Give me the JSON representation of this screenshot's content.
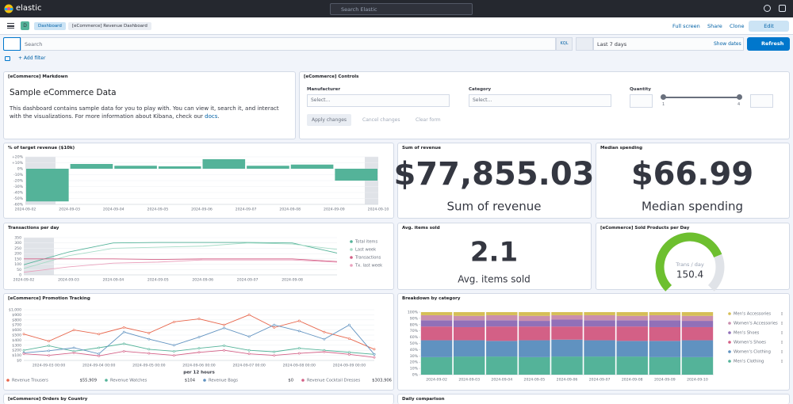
{
  "header": {
    "brand": "elastic",
    "search": "Search Elastic",
    "avatar": "D",
    "breadcrumbs": [
      "Dashboard",
      "[eCommerce] Revenue Dashboard"
    ],
    "actions": [
      "Full screen",
      "Share",
      "Clone",
      "Edit"
    ]
  },
  "query_bar": {
    "placeholder": "Search",
    "language": "KQL",
    "time": "Last 7 days",
    "show_dates": "Show dates",
    "refresh": "Refresh",
    "add_filter": "+ Add filter"
  },
  "markdown": {
    "panel_title": "[eCommerce] Markdown",
    "heading": "Sample eCommerce Data",
    "text": "This dashboard contains sample data for you to play with. You can view it, search it, and interact with the visualizations. For more information about Kibana, check our ",
    "link": "docs",
    "end": "."
  },
  "controls": {
    "panel_title": "[eCommerce] Controls",
    "fields": [
      {
        "label": "Manufacturer",
        "placeholder": "Select..."
      },
      {
        "label": "Category",
        "placeholder": "Select..."
      }
    ],
    "range": {
      "label": "Quantity",
      "min": 1,
      "max": 4
    },
    "buttons": [
      "Apply changes",
      "Cancel changes",
      "Clear form"
    ]
  },
  "more_panels": [
    "[eCommerce] Orders by Country",
    "Daily comparison"
  ],
  "chart_data": [
    {
      "type": "bar",
      "title": "% of target revenue ($10k)",
      "categories": [
        "2024-09-02",
        "2024-09-03",
        "2024-09-04",
        "2024-09-05",
        "2024-09-06",
        "2024-09-07",
        "2024-09-08",
        "2024-09-09",
        "2024-09-10"
      ],
      "values": [
        -55,
        8,
        5,
        4,
        16,
        5,
        7,
        -20,
        null
      ],
      "color": "#54b399",
      "ylim": [
        -60,
        20
      ],
      "yticks": [
        {
          "value": 20,
          "label": "+20%"
        },
        {
          "value": 10,
          "label": "+10%"
        },
        {
          "value": 0,
          "label": "0%"
        },
        {
          "value": -10,
          "label": "-10%"
        },
        {
          "value": -20,
          "label": "-20%"
        },
        {
          "value": -30,
          "label": "-30%"
        },
        {
          "value": -40,
          "label": "-40%"
        },
        {
          "value": -50,
          "label": "-50%"
        },
        {
          "value": -60,
          "label": "-60%"
        }
      ],
      "grid": true
    },
    {
      "type": "metric",
      "title": "Sum of revenue",
      "values": [
        77855.03
      ],
      "value_labels": [
        "$77,855.03"
      ],
      "label": "Sum of revenue"
    },
    {
      "type": "metric",
      "title": "Median spending",
      "values": [
        66.99
      ],
      "value_labels": [
        "$66.99"
      ],
      "label": "Median spending"
    },
    {
      "type": "line",
      "title": "Transactions per day",
      "categories": [
        "2024-09-02",
        "2024-09-03",
        "2024-09-04",
        "2024-09-05",
        "2024-09-06",
        "2024-09-07",
        "2024-09-08",
        null
      ],
      "series": [
        {
          "name": "Total items",
          "color": "#54b399",
          "values": [
            95,
            215,
            300,
            305,
            305,
            305,
            300,
            205
          ]
        },
        {
          "name": "Last week",
          "color": "#a6dcc7",
          "values": [
            60,
            180,
            250,
            260,
            270,
            300,
            290,
            240
          ]
        },
        {
          "name": "Transactions",
          "color": "#d36086",
          "values": [
            150,
            150,
            150,
            145,
            150,
            150,
            150,
            125
          ]
        },
        {
          "name": "Tx. last week",
          "color": "#eaa1bd",
          "values": [
            25,
            75,
            110,
            120,
            140,
            140,
            140,
            120
          ]
        }
      ],
      "ylim": [
        0,
        350
      ],
      "yticks": [
        0,
        50,
        100,
        150,
        200,
        250,
        300,
        350
      ],
      "grid": true,
      "legend": "right"
    },
    {
      "type": "metric",
      "title": "Avg. items sold",
      "values": [
        2.1
      ],
      "label": "Avg. items sold"
    },
    {
      "type": "gauge",
      "title": "[eCommerce] Sold Products per Day",
      "values": [
        150.4
      ],
      "label": "Trans / day",
      "ylim": [
        0,
        200
      ],
      "color": "#6dbf2f"
    },
    {
      "type": "line",
      "title": "[eCommerce] Promotion Tracking",
      "x": [
        null,
        "2024-09-03 00:00",
        null,
        "2024-09-04 00:00",
        null,
        "2024-09-05 00:00",
        null,
        "2024-09-06 00:00",
        null,
        "2024-09-07 00:00",
        null,
        "2024-09-08 00:00",
        null,
        "2024-09-09 00:00",
        null
      ],
      "xlabel": "per 12 hours",
      "series": [
        {
          "name": "Revenue Trousers",
          "color": "#e7664c",
          "values": [
            520,
            380,
            600,
            520,
            650,
            540,
            760,
            820,
            700,
            900,
            650,
            780,
            560,
            430,
            220
          ],
          "legend_value": "$55,909"
        },
        {
          "name": "Revenue Watches",
          "color": "#54b399",
          "values": [
            200,
            290,
            180,
            250,
            330,
            220,
            180,
            240,
            290,
            200,
            170,
            240,
            200,
            160,
            120
          ],
          "legend_value": "$104"
        },
        {
          "name": "Revenue Bags",
          "color": "#6092c0",
          "values": [
            150,
            190,
            250,
            130,
            560,
            420,
            300,
            460,
            640,
            470,
            700,
            580,
            420,
            700,
            120
          ],
          "legend_value": "$0"
        },
        {
          "name": "Revenue Cocktail Dresses",
          "color": "#d36086",
          "values": [
            130,
            100,
            150,
            90,
            180,
            140,
            100,
            160,
            200,
            130,
            100,
            140,
            170,
            120,
            60
          ],
          "legend_value": "$303,906"
        }
      ],
      "ylim": [
        0,
        1000
      ],
      "yticks": [
        {
          "value": 0,
          "label": "$0"
        },
        {
          "value": 100,
          "label": "$100"
        },
        {
          "value": 200,
          "label": "$200"
        },
        {
          "value": 300,
          "label": "$300"
        },
        {
          "value": 400,
          "label": "$400"
        },
        {
          "value": 500,
          "label": "$500"
        },
        {
          "value": 600,
          "label": "$600"
        },
        {
          "value": 700,
          "label": "$700"
        },
        {
          "value": 800,
          "label": "$800"
        },
        {
          "value": 900,
          "label": "$900"
        },
        {
          "value": 1000,
          "label": "$1,000"
        }
      ],
      "grid": true,
      "legend": "bottom"
    },
    {
      "type": "bar",
      "stacked": true,
      "title": "Breakdown by category",
      "categories": [
        "2024-09-02",
        "2024-09-03",
        "2024-09-04",
        "2024-09-05",
        "2024-09-06",
        "2024-09-07",
        "2024-09-08",
        "2024-09-09",
        "2024-09-10"
      ],
      "series": [
        {
          "name": "Men's Accessories",
          "color": "#d6bf57",
          "values": [
            5,
            6,
            5,
            6,
            5,
            5,
            6,
            5,
            6
          ]
        },
        {
          "name": "Women's Accessories",
          "color": "#ca8eae",
          "values": [
            8,
            7,
            8,
            8,
            7,
            8,
            7,
            8,
            8
          ]
        },
        {
          "name": "Men's Shoes",
          "color": "#9170b8",
          "values": [
            10,
            11,
            10,
            9,
            11,
            10,
            10,
            11,
            10
          ]
        },
        {
          "name": "Women's Shoes",
          "color": "#d36086",
          "values": [
            22,
            21,
            23,
            22,
            21,
            22,
            23,
            22,
            21
          ]
        },
        {
          "name": "Women's Clothing",
          "color": "#6092c0",
          "values": [
            27,
            26,
            25,
            27,
            27,
            26,
            25,
            26,
            27
          ]
        },
        {
          "name": "Men's Clothing",
          "color": "#54b399",
          "values": [
            28,
            29,
            29,
            28,
            29,
            29,
            29,
            28,
            28
          ]
        }
      ],
      "ylim": [
        0,
        100
      ],
      "yticks": [
        {
          "value": 0,
          "label": "0%"
        },
        {
          "value": 10,
          "label": "10%"
        },
        {
          "value": 20,
          "label": "20%"
        },
        {
          "value": 30,
          "label": "30%"
        },
        {
          "value": 40,
          "label": "40%"
        },
        {
          "value": 50,
          "label": "50%"
        },
        {
          "value": 60,
          "label": "60%"
        },
        {
          "value": 70,
          "label": "70%"
        },
        {
          "value": 80,
          "label": "80%"
        },
        {
          "value": 90,
          "label": "90%"
        },
        {
          "value": 100,
          "label": "100%"
        }
      ],
      "grid": false,
      "legend": "right"
    }
  ]
}
